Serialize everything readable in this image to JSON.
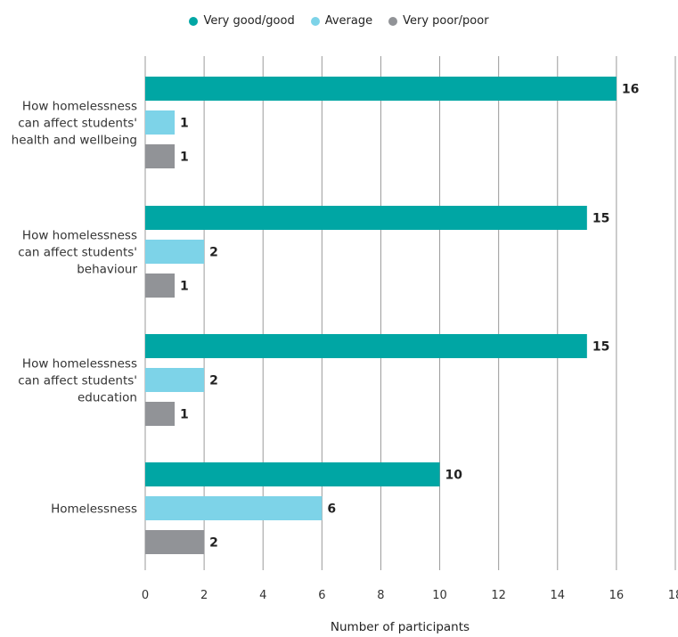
{
  "chart_data": {
    "type": "bar",
    "orientation": "horizontal",
    "categories": [
      "How homelessness can affect students' health and wellbeing",
      "How homelessness can affect students' behaviour",
      "How homelessness can affect students' education",
      "Homelessness"
    ],
    "category_label_lines": [
      [
        "How homelessness",
        "can affect students'",
        "health and wellbeing"
      ],
      [
        "How homelessness",
        "can affect students'",
        "behaviour"
      ],
      [
        "How homelessness",
        "can affect students'",
        "education"
      ],
      [
        "Homelessness"
      ]
    ],
    "series": [
      {
        "name": "Very good/good",
        "color": "#00a6a4",
        "values": [
          16,
          15,
          15,
          10
        ]
      },
      {
        "name": "Average",
        "color": "#7dd3e8",
        "values": [
          1,
          2,
          2,
          6
        ]
      },
      {
        "name": "Very poor/poor",
        "color": "#919397",
        "values": [
          1,
          1,
          1,
          2
        ]
      }
    ],
    "xlabel": "Number of participants",
    "xlim": [
      0,
      18
    ],
    "xticks": [
      0,
      2,
      4,
      6,
      8,
      10,
      12,
      14,
      16,
      18
    ],
    "grid": "vertical",
    "legend_position": "top-center"
  }
}
